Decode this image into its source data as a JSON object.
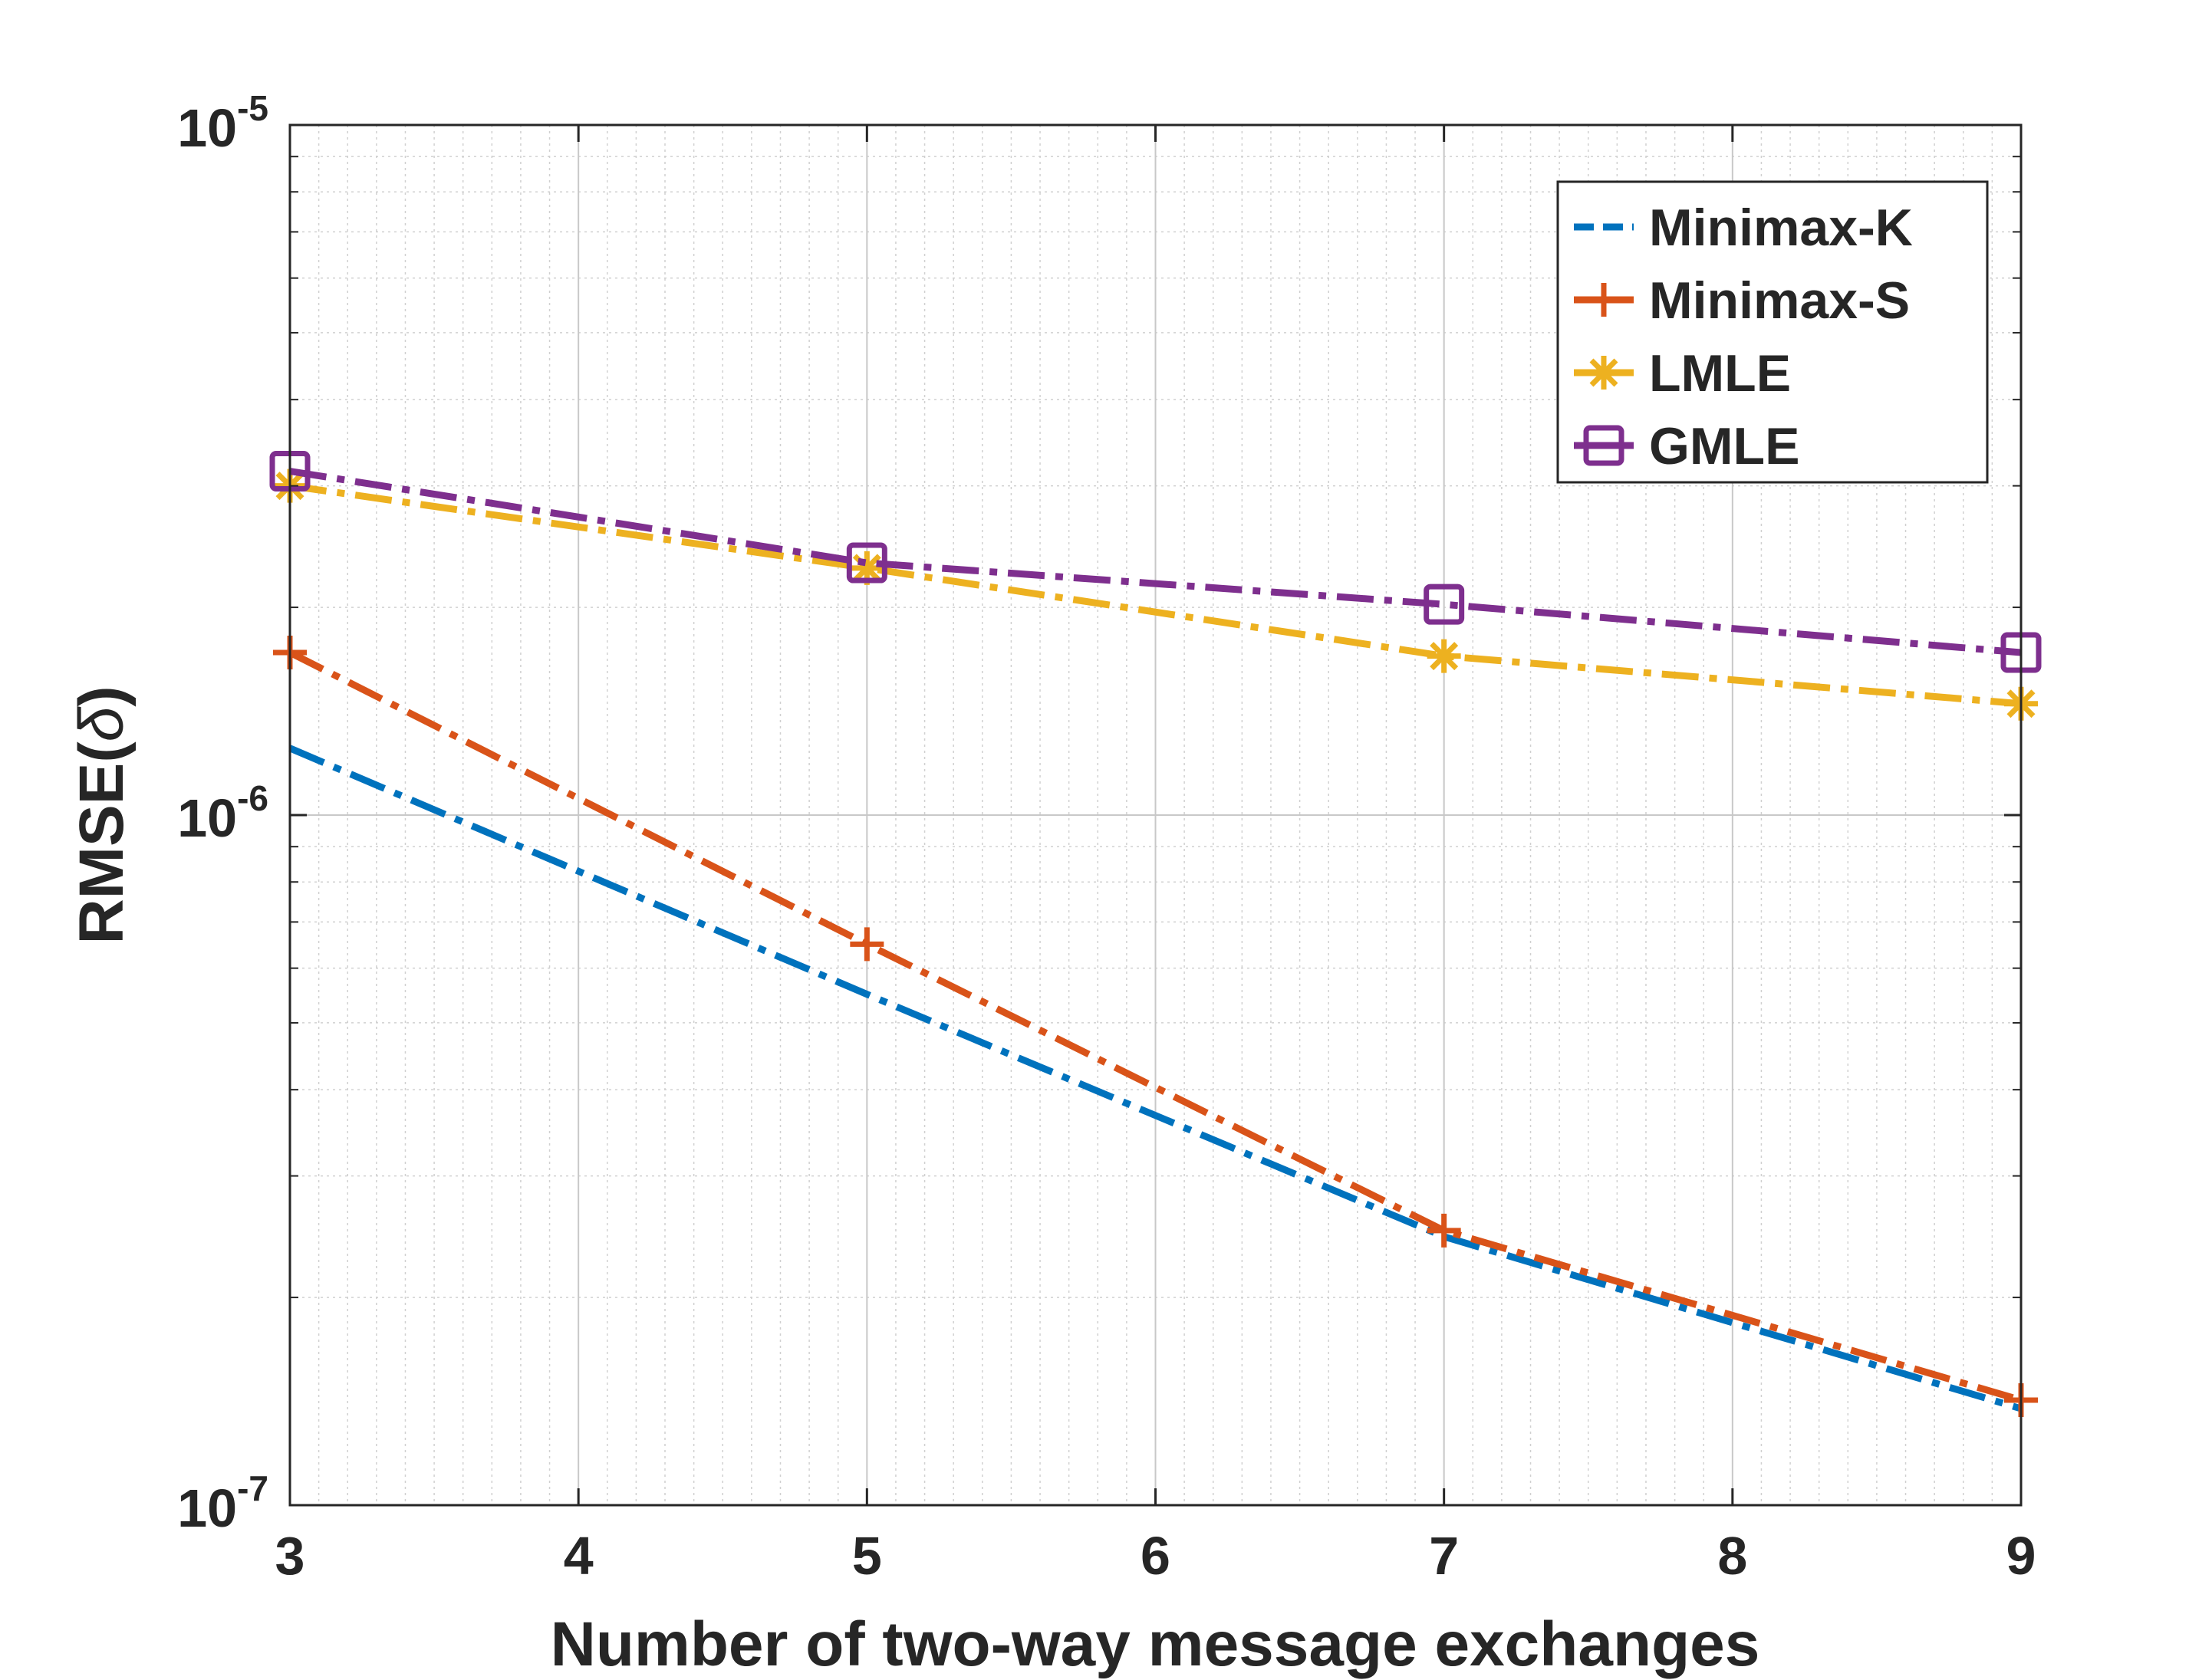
{
  "chart_data": {
    "type": "line",
    "xlabel": "Number of two-way message exchanges",
    "ylabel_main": "RMSE(",
    "ylabel_symbol": "δ",
    "ylabel_close": ")",
    "xlim": [
      3,
      9
    ],
    "ylim": [
      1e-07,
      1e-05
    ],
    "yscale": "log",
    "grid": true,
    "minor_grid": true,
    "legend_position": "top-right",
    "x_ticks": [
      3,
      4,
      5,
      6,
      7,
      8,
      9
    ],
    "x_tick_labels": [
      "3",
      "4",
      "5",
      "6",
      "7",
      "8",
      "9"
    ],
    "y_ticks": [
      {
        "value": 1e-05,
        "base": "10",
        "exponent": "-5"
      },
      {
        "value": 1e-06,
        "base": "10",
        "exponent": "-6"
      },
      {
        "value": 1e-07,
        "base": "10",
        "exponent": "-7"
      }
    ],
    "series": [
      {
        "name": "Minimax-K",
        "color": "#0072BD",
        "marker": "none",
        "dash": "dashdot",
        "x": [
          3,
          5,
          7,
          9
        ],
        "y": [
          1.25e-06,
          5.5e-07,
          2.45e-07,
          1.38e-07
        ]
      },
      {
        "name": "Minimax-S",
        "color": "#D95319",
        "marker": "plus",
        "dash": "dashdot",
        "x": [
          3,
          5,
          7,
          9
        ],
        "y": [
          1.72e-06,
          6.5e-07,
          2.5e-07,
          1.42e-07
        ]
      },
      {
        "name": "LMLE",
        "color": "#EDB120",
        "marker": "asterisk",
        "dash": "dashdot",
        "x": [
          3,
          5,
          7,
          9
        ],
        "y": [
          3e-06,
          2.28e-06,
          1.7e-06,
          1.45e-06
        ]
      },
      {
        "name": "GMLE",
        "color": "#7E2F8E",
        "marker": "square",
        "dash": "dashdot",
        "x": [
          3,
          5,
          7,
          9
        ],
        "y": [
          3.15e-06,
          2.32e-06,
          2.02e-06,
          1.72e-06
        ]
      }
    ]
  }
}
